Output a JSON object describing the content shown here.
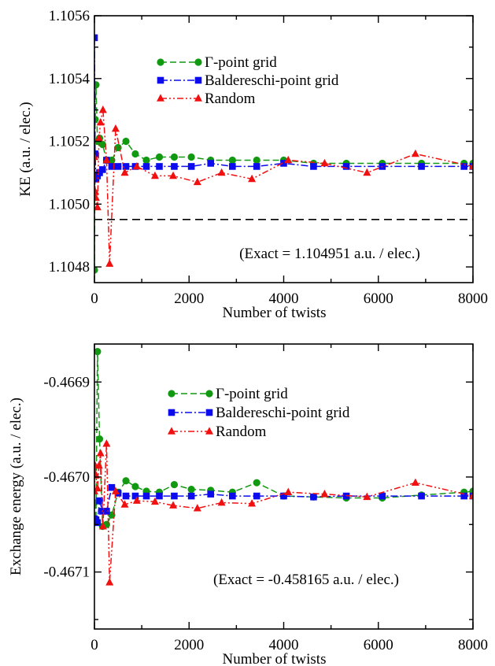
{
  "chart_data": [
    {
      "type": "line",
      "xlabel": "Number of twists",
      "ylabel": "KE (a.u. / elec.)",
      "xlim": [
        0,
        8000
      ],
      "ylim": [
        1.10475,
        1.1056
      ],
      "xticks": [
        0,
        2000,
        4000,
        6000,
        8000
      ],
      "xtick_labels": [
        "0",
        "2000",
        "4000",
        "6000",
        "8000"
      ],
      "yticks": [
        1.1048,
        1.105,
        1.1052,
        1.1054,
        1.1056
      ],
      "ytick_labels": [
        "1.1048",
        "1.1050",
        "1.1052",
        "1.1054",
        "1.1056"
      ],
      "grid": false,
      "legend_position": "top-center",
      "annotation": "(Exact = 1.104951 a.u. / elec.)",
      "reference_line": {
        "y": 1.104951,
        "style": "dashed",
        "color": "#000000"
      },
      "series": [
        {
          "name": "Γ-point grid",
          "color": "#129912",
          "marker": "circle",
          "dash": "dashed",
          "x": [
            0,
            14,
            32,
            64,
            108,
            172,
            256,
            365,
            500,
            666,
            864,
            1098,
            1372,
            1687,
            2048,
            2457,
            2916,
            3430,
            4000,
            4631,
            5324,
            6084,
            6912,
            7812,
            8000
          ],
          "y": [
            1.10479,
            1.10527,
            1.10538,
            1.1052,
            1.10521,
            1.10519,
            1.10514,
            1.10514,
            1.10518,
            1.1052,
            1.10516,
            1.10514,
            1.10515,
            1.10515,
            1.10515,
            1.10514,
            1.10514,
            1.10514,
            1.10514,
            1.10513,
            1.10513,
            1.10513,
            1.10513,
            1.10513,
            1.10513
          ]
        },
        {
          "name": "Baldereschi-point grid",
          "color": "#0b0bee",
          "marker": "square",
          "dash": "dashdot",
          "x": [
            0,
            14,
            32,
            64,
            108,
            172,
            256,
            365,
            500,
            666,
            864,
            1098,
            1372,
            1687,
            2048,
            2457,
            2916,
            3430,
            4000,
            4631,
            5324,
            6084,
            6912,
            7812,
            8000
          ],
          "y": [
            1.10553,
            1.10516,
            1.10508,
            1.10509,
            1.1051,
            1.10511,
            1.10514,
            1.10512,
            1.10512,
            1.10512,
            1.10512,
            1.10512,
            1.10512,
            1.10512,
            1.10512,
            1.10513,
            1.10512,
            1.10512,
            1.10513,
            1.10512,
            1.10512,
            1.10512,
            1.10512,
            1.10512,
            1.10512
          ]
        },
        {
          "name": "Random",
          "color": "#f01010",
          "marker": "triangle",
          "dash": "dashdotdot",
          "x": [
            0,
            16,
            32,
            64,
            96,
            128,
            180,
            256,
            320,
            448,
            640,
            896,
            1280,
            1664,
            2176,
            2688,
            3328,
            4096,
            4864,
            5760,
            6784,
            8000
          ],
          "y": [
            1.10515,
            1.10504,
            1.10502,
            1.10499,
            1.10521,
            1.10526,
            1.1053,
            1.10514,
            1.10481,
            1.10524,
            1.1051,
            1.10512,
            1.10509,
            1.10509,
            1.10507,
            1.1051,
            1.10508,
            1.10514,
            1.10513,
            1.1051,
            1.10516,
            1.10512
          ]
        }
      ]
    },
    {
      "type": "line",
      "xlabel": "Number of twists",
      "ylabel": "Exchange energy (a.u. / elec.)",
      "xlim": [
        0,
        8000
      ],
      "ylim": [
        -0.46716,
        -0.46686
      ],
      "xticks": [
        0,
        2000,
        4000,
        6000,
        8000
      ],
      "xtick_labels": [
        "0",
        "2000",
        "4000",
        "6000",
        "8000"
      ],
      "yticks": [
        -0.4671,
        -0.467,
        -0.4669
      ],
      "ytick_labels": [
        "-0.4671",
        "-0.4670",
        "-0.4669"
      ],
      "grid": false,
      "legend_position": "top-center",
      "annotation": "(Exact = -0.458165 a.u. / elec.)",
      "series": [
        {
          "name": "Γ-point grid",
          "color": "#129912",
          "marker": "circle",
          "dash": "dashed",
          "x": [
            0,
            32,
            64,
            108,
            172,
            256,
            365,
            500,
            666,
            864,
            1098,
            1372,
            1687,
            2048,
            2457,
            2916,
            3430,
            4000,
            4631,
            5324,
            6084,
            6912,
            7812,
            8000
          ],
          "y": [
            -0.467027,
            -0.467045,
            -0.466868,
            -0.46696,
            -0.467052,
            -0.46705,
            -0.46704,
            -0.467016,
            -0.467004,
            -0.46701,
            -0.467015,
            -0.467016,
            -0.467008,
            -0.467013,
            -0.467014,
            -0.467016,
            -0.467006,
            -0.46702,
            -0.467021,
            -0.467022,
            -0.467022,
            -0.467019,
            -0.467016,
            -0.467015
          ]
        },
        {
          "name": "Baldereschi-point grid",
          "color": "#0b0bee",
          "marker": "square",
          "dash": "dashdot",
          "x": [
            0,
            32,
            64,
            108,
            172,
            256,
            365,
            500,
            666,
            864,
            1098,
            1372,
            1687,
            2048,
            2457,
            2916,
            3430,
            4000,
            4631,
            5324,
            6084,
            6912,
            7812,
            8000
          ],
          "y": [
            -0.467044,
            -0.467045,
            -0.467048,
            -0.467025,
            -0.467036,
            -0.467036,
            -0.467011,
            -0.467017,
            -0.46702,
            -0.46702,
            -0.46702,
            -0.46702,
            -0.46702,
            -0.46702,
            -0.467018,
            -0.46702,
            -0.46702,
            -0.46702,
            -0.467021,
            -0.46702,
            -0.46702,
            -0.46702,
            -0.46702,
            -0.46702
          ]
        },
        {
          "name": "Random",
          "color": "#f01010",
          "marker": "triangle",
          "dash": "dashdotdot",
          "x": [
            0,
            16,
            32,
            64,
            96,
            128,
            180,
            256,
            320,
            448,
            640,
            896,
            1280,
            1664,
            2176,
            2688,
            3328,
            4096,
            4864,
            5760,
            6784,
            8000
          ],
          "y": [
            -0.467015,
            -0.466988,
            -0.466998,
            -0.467012,
            -0.466988,
            -0.466975,
            -0.467052,
            -0.466965,
            -0.467111,
            -0.467015,
            -0.467029,
            -0.467025,
            -0.467026,
            -0.46703,
            -0.467033,
            -0.467027,
            -0.467028,
            -0.467016,
            -0.467018,
            -0.467021,
            -0.467006,
            -0.46702
          ]
        }
      ]
    }
  ]
}
